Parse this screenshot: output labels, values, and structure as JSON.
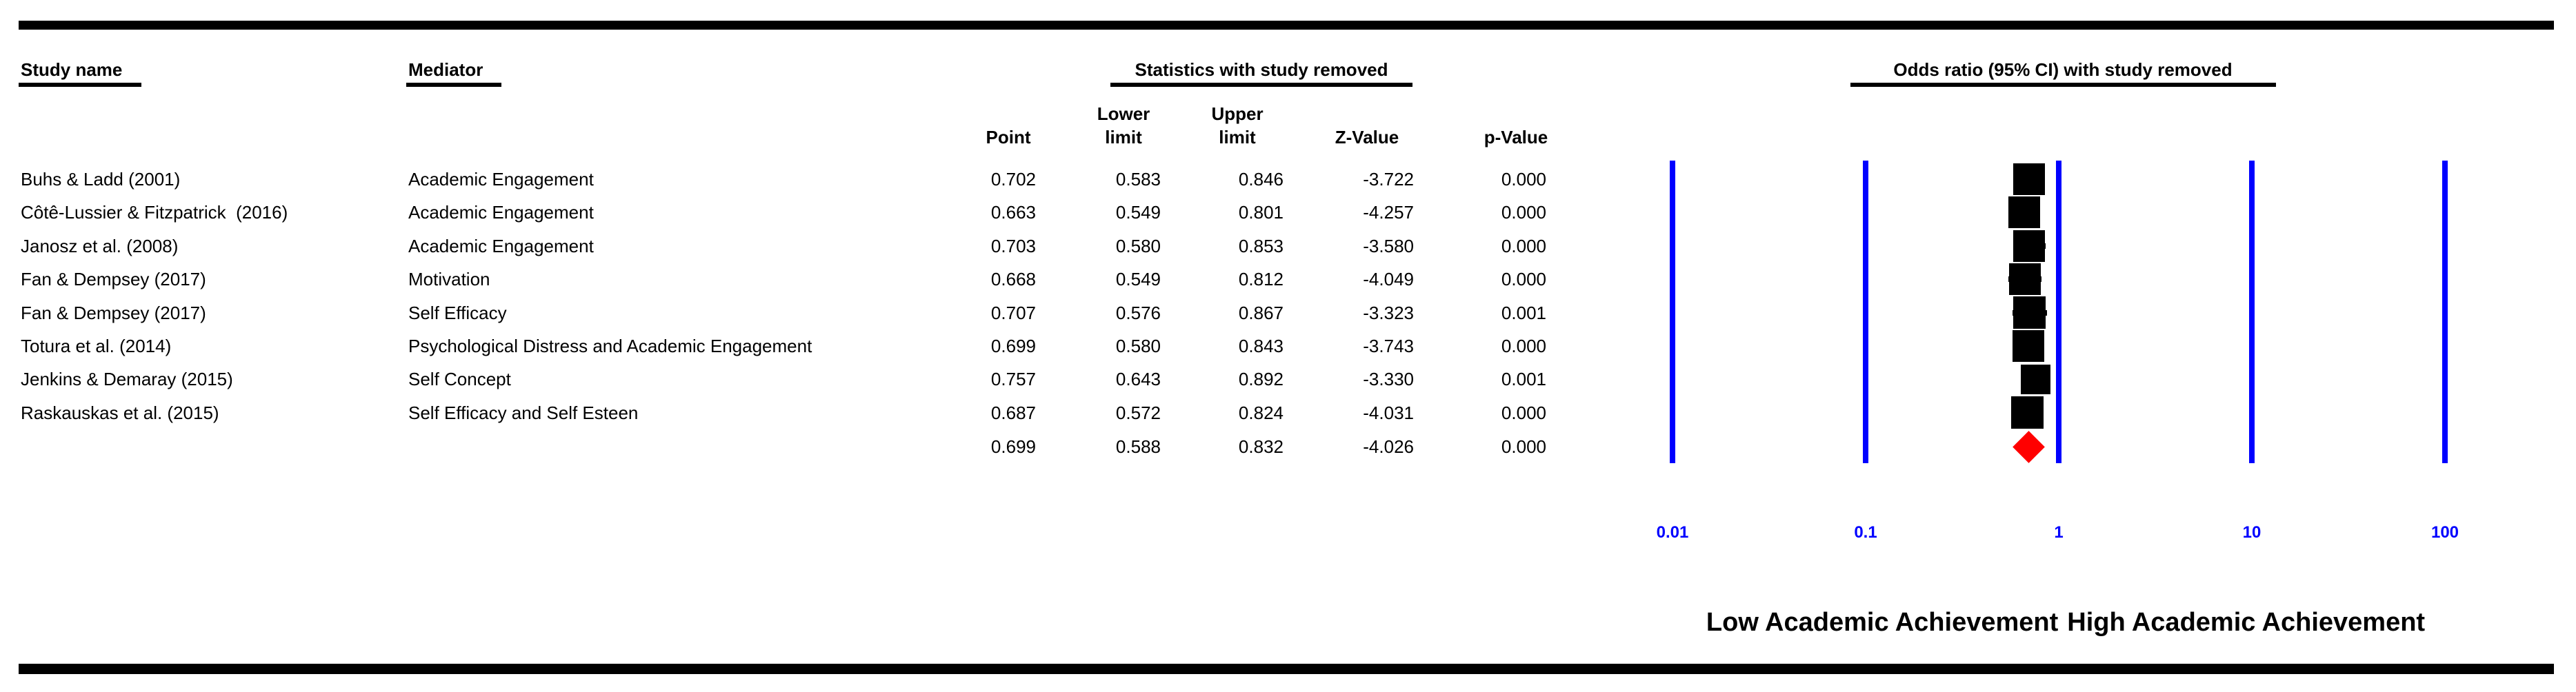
{
  "page": {
    "background": "#ffffff",
    "rule_color": "#000000"
  },
  "headers": {
    "study_name": "Study name",
    "mediator": "Mediator",
    "stats_group": "Statistics with study removed",
    "plot_group": "Odds ratio (95% CI) with study removed",
    "col_point": "Point",
    "col_lower": "Lower\nlimit",
    "col_upper": "Upper\nlimit",
    "col_z": "Z-Value",
    "col_p": "p-Value"
  },
  "chart_data": {
    "type": "scatter",
    "subtype": "forest-plot-leave-one-out",
    "title": "Odds ratio (95% CI) with study removed",
    "x_scale": "log10",
    "xlim": [
      0.01,
      100
    ],
    "x_ticks": [
      "0.01",
      "0.1",
      "1",
      "10",
      "100"
    ],
    "x_tick_values": [
      0.01,
      0.1,
      1,
      10,
      100
    ],
    "grid": "vertical-blue-lines",
    "legend_position": "none",
    "axis_color": "#0000ff",
    "marker_color": "#000000",
    "summary_marker_color": "#ff0000",
    "studies": [
      {
        "study": "Buhs & Ladd (2001)",
        "mediator": "Academic Engagement",
        "point": "0.702",
        "lower": "0.583",
        "upper": "0.846",
        "z": "-3.722",
        "p": "0.000"
      },
      {
        "study": "Côtê-Lussier & Fitzpatrick  (2016)",
        "mediator": "Academic Engagement",
        "point": "0.663",
        "lower": "0.549",
        "upper": "0.801",
        "z": "-4.257",
        "p": "0.000"
      },
      {
        "study": "Janosz et al. (2008)",
        "mediator": "Academic Engagement",
        "point": "0.703",
        "lower": "0.580",
        "upper": "0.853",
        "z": "-3.580",
        "p": "0.000"
      },
      {
        "study": "Fan & Dempsey (2017)",
        "mediator": "Motivation",
        "point": "0.668",
        "lower": "0.549",
        "upper": "0.812",
        "z": "-4.049",
        "p": "0.000"
      },
      {
        "study": "Fan & Dempsey (2017)",
        "mediator": "Self Efficacy",
        "point": "0.707",
        "lower": "0.576",
        "upper": "0.867",
        "z": "-3.323",
        "p": "0.001"
      },
      {
        "study": "Totura et al. (2014)",
        "mediator": "Psychological Distress and Academic Engagement",
        "point": "0.699",
        "lower": "0.580",
        "upper": "0.843",
        "z": "-3.743",
        "p": "0.000"
      },
      {
        "study": "Jenkins & Demaray (2015)",
        "mediator": "Self Concept",
        "point": "0.757",
        "lower": "0.643",
        "upper": "0.892",
        "z": "-3.330",
        "p": "0.001"
      },
      {
        "study": "Raskauskas et al. (2015)",
        "mediator": "Self Efficacy and Self Esteen",
        "point": "0.687",
        "lower": "0.572",
        "upper": "0.824",
        "z": "-4.031",
        "p": "0.000"
      }
    ],
    "marker_sizes_px": [
      46,
      46,
      46,
      46,
      47,
      46,
      43,
      47
    ],
    "summary": {
      "point": "0.699",
      "lower": "0.588",
      "upper": "0.832",
      "z": "-4.026",
      "p": "0.000"
    },
    "footer_left": "Low Academic Achievement",
    "footer_right": "High Academic Achievement"
  }
}
